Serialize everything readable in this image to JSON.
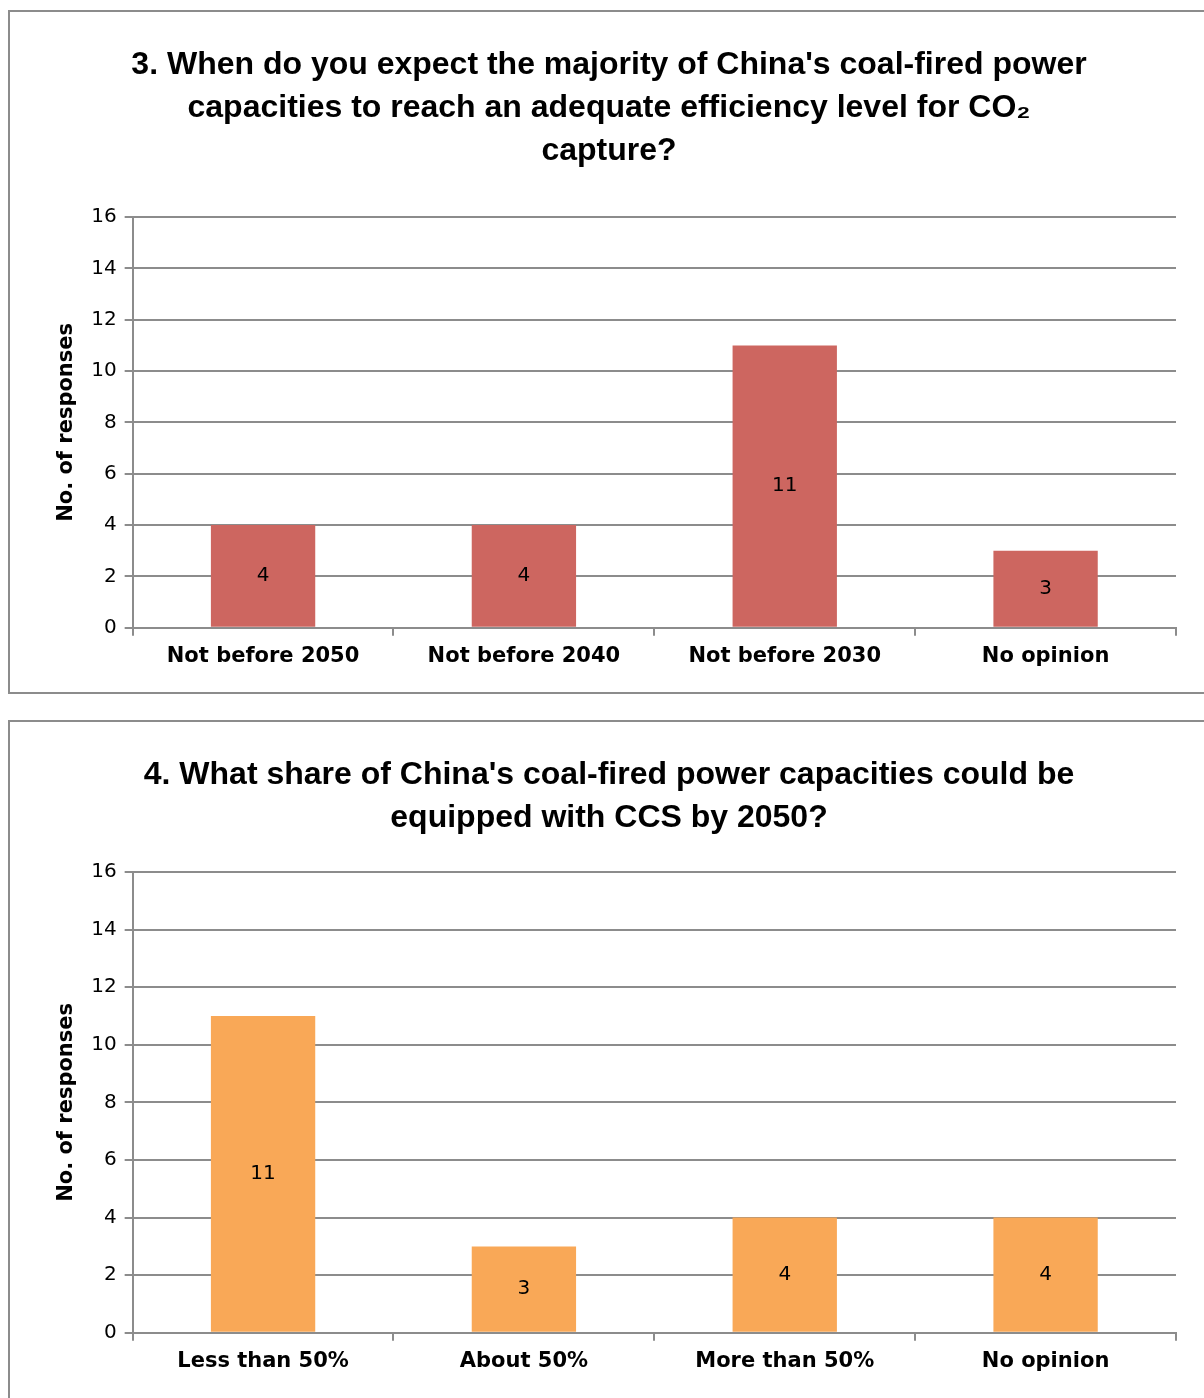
{
  "chart_data": [
    {
      "type": "bar",
      "title": "3. When do you expect the majority of China's coal-fired power capacities to reach an adequate efficiency level for CO₂ capture?",
      "ylabel": "No. of responses",
      "categories": [
        "Not before 2050",
        "Not before 2040",
        "Not before 2030",
        "No opinion"
      ],
      "values": [
        4,
        4,
        11,
        3
      ],
      "color": "#cd6660",
      "ylim": [
        0,
        16
      ],
      "yticks": [
        0,
        2,
        4,
        6,
        8,
        10,
        12,
        14,
        16
      ],
      "grid": "y",
      "data_labels": true
    },
    {
      "type": "bar",
      "title": "4. What share of China's coal-fired power capacities could be equipped with CCS by 2050?",
      "ylabel": "No. of responses",
      "categories": [
        "Less than 50%",
        "About 50%",
        "More than 50%",
        "No opinion"
      ],
      "values": [
        11,
        3,
        4,
        4
      ],
      "color": "#f9a857",
      "ylim": [
        0,
        16
      ],
      "yticks": [
        0,
        2,
        4,
        6,
        8,
        10,
        12,
        14,
        16
      ],
      "grid": "y",
      "data_labels": true
    }
  ]
}
